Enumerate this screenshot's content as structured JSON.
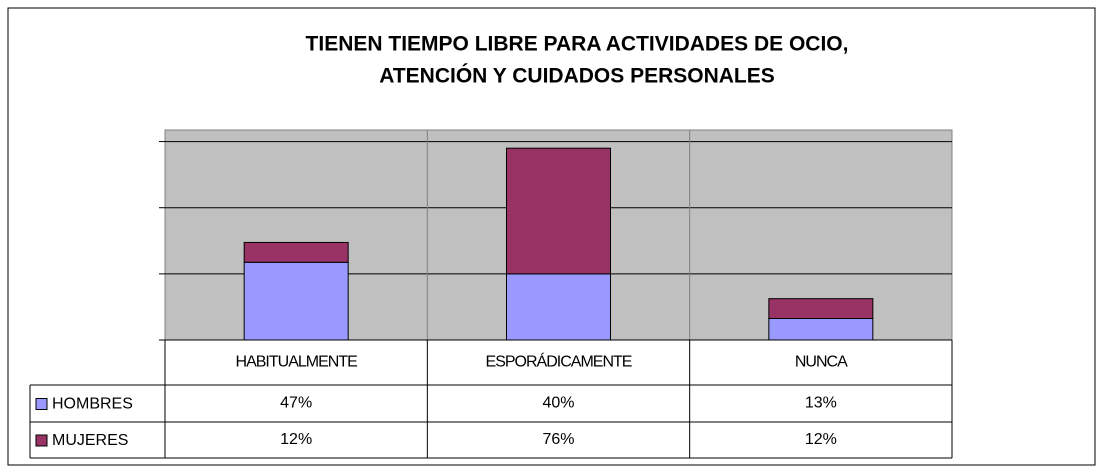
{
  "chart_data": {
    "type": "stacked_bar",
    "title": [
      "TIENEN TIEMPO LIBRE PARA ACTIVIDADES DE OCIO,",
      "ATENCIÓN Y CUIDADOS PERSONALES"
    ],
    "categories": [
      "HABITUALMENTE",
      "ESPORÁDICAMENTE",
      "NUNCA"
    ],
    "series": [
      {
        "name": "HOMBRES",
        "color": "#9999ff",
        "values": [
          47,
          40,
          13
        ],
        "value_labels": [
          "47%",
          "40%",
          "13%"
        ]
      },
      {
        "name": "MUJERES",
        "color": "#993366",
        "values": [
          12,
          76,
          12
        ],
        "value_labels": [
          "12%",
          "76%",
          "12%"
        ]
      }
    ],
    "ylim": [
      0,
      127
    ],
    "yticks": [
      0,
      40,
      80,
      120
    ],
    "grid": true,
    "plot_background": "#c0c0c0"
  }
}
